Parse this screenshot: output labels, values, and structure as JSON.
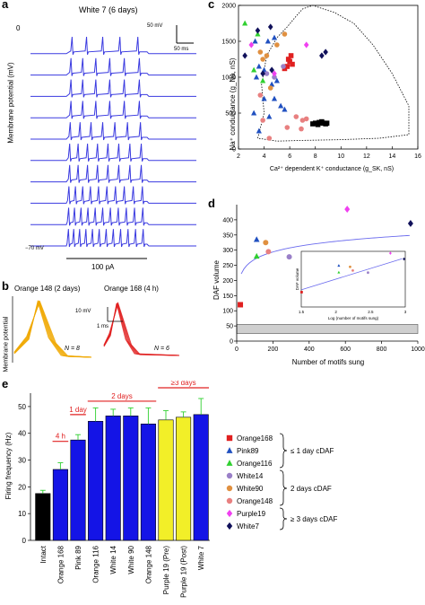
{
  "panel_labels": {
    "a": "a",
    "b": "b",
    "c": "c",
    "d": "d",
    "e": "e"
  },
  "panel_a": {
    "title": "White 7 (6 days)",
    "ylabel": "Membrane potential (mV)",
    "top_tick": "0",
    "scalebar_v": "50 mV",
    "scalebar_h": "50 ms",
    "bottom_label": "−70 mV",
    "current_label": "100 pA",
    "trace_color": "#3a3ae0",
    "spike_counts": [
      5,
      6,
      6,
      6,
      7,
      8,
      8,
      10,
      11,
      12
    ]
  },
  "panel_b": {
    "ylabel": "Membrane potential",
    "left_title": "Orange 148 (2 days)",
    "right_title": "Orange 168 (4 h)",
    "scalebar_v": "10 mV",
    "scalebar_h": "1 ms",
    "left_n": "N = 8",
    "right_n": "N = 6",
    "left_color": "#f0a800",
    "right_color": "#e02020"
  },
  "legend": {
    "items": [
      {
        "name": "Orange168",
        "marker": "square",
        "color": "#e02020"
      },
      {
        "name": "Pink89",
        "marker": "triangle-up",
        "color": "#2050c0"
      },
      {
        "name": "Orange116",
        "marker": "triangle-up",
        "color": "#30d030"
      },
      {
        "name": "White14",
        "marker": "circle",
        "color": "#9a80c8"
      },
      {
        "name": "White90",
        "marker": "circle",
        "color": "#e09040"
      },
      {
        "name": "Orange148",
        "marker": "circle",
        "color": "#e88080"
      },
      {
        "name": "Purple19",
        "marker": "diamond",
        "color": "#f040f0"
      },
      {
        "name": "White7",
        "marker": "diamond",
        "color": "#10105a"
      }
    ],
    "groups": [
      "≤ 1 day cDAF",
      "2 days cDAF",
      "≥ 3 days cDAF"
    ]
  },
  "chart_data": [
    {
      "panel": "c",
      "type": "scatter",
      "xlabel": "Ca²⁺ dependent K⁺ conductance (g_SK, nS)",
      "ylabel": "Na⁺ conductance (g_Na, nS)",
      "xlim": [
        2,
        16
      ],
      "ylim": [
        0,
        2000
      ],
      "xticks": [
        2,
        4,
        6,
        8,
        10,
        12,
        14,
        16
      ],
      "yticks": [
        0,
        500,
        1000,
        1500,
        2000
      ],
      "series": [
        {
          "name": "Orange168",
          "marker": "square",
          "color": "#e02020",
          "points": [
            [
              5.8,
              1150
            ],
            [
              5.9,
              1250
            ],
            [
              6.1,
              1300
            ],
            [
              6.2,
              1180
            ],
            [
              5.6,
              1120
            ],
            [
              6.0,
              1220
            ]
          ]
        },
        {
          "name": "Pink89",
          "marker": "triangle-up",
          "color": "#2050c0",
          "points": [
            [
              3.3,
              1500
            ],
            [
              4.3,
              1500
            ],
            [
              4.8,
              1550
            ],
            [
              3.4,
              1000
            ],
            [
              3.6,
              1150
            ],
            [
              4.0,
              1100
            ],
            [
              4.6,
              900
            ],
            [
              5.0,
              950
            ],
            [
              3.2,
              500
            ],
            [
              4.0,
              700
            ],
            [
              4.8,
              700
            ],
            [
              5.3,
              600
            ],
            [
              5.6,
              550
            ],
            [
              3.6,
              250
            ],
            [
              4.4,
              450
            ]
          ]
        },
        {
          "name": "Orange116",
          "marker": "triangle-up",
          "color": "#30d030",
          "points": [
            [
              2.5,
              1750
            ],
            [
              3.5,
              1600
            ],
            [
              3.2,
              1100
            ],
            [
              3.9,
              950
            ]
          ]
        },
        {
          "name": "White14",
          "marker": "circle",
          "color": "#9a80c8",
          "points": [
            [
              4.2,
              1050
            ],
            [
              5.5,
              1150
            ],
            [
              4.8,
              1000
            ]
          ]
        },
        {
          "name": "White90",
          "marker": "circle",
          "color": "#e09040",
          "points": [
            [
              3.7,
              1350
            ],
            [
              3.9,
              1250
            ],
            [
              4.5,
              850
            ],
            [
              5.0,
              1450
            ],
            [
              5.6,
              1600
            ],
            [
              4.2,
              1300
            ]
          ]
        },
        {
          "name": "Orange148",
          "marker": "circle",
          "color": "#e88080",
          "points": [
            [
              3.7,
              750
            ],
            [
              3.9,
              400
            ],
            [
              4.4,
              150
            ],
            [
              5.8,
              300
            ],
            [
              6.5,
              450
            ],
            [
              7.0,
              400
            ],
            [
              6.9,
              280
            ],
            [
              7.3,
              420
            ]
          ]
        },
        {
          "name": "Purple19",
          "marker": "diamond",
          "color": "#f040f0",
          "points": [
            [
              3.0,
              1450
            ],
            [
              4.8,
              1050
            ],
            [
              7.3,
              1450
            ]
          ]
        },
        {
          "name": "White7",
          "marker": "diamond",
          "color": "#10105a",
          "points": [
            [
              2.5,
              1300
            ],
            [
              3.5,
              1650
            ],
            [
              4.5,
              1700
            ],
            [
              8.8,
              1350
            ],
            [
              8.5,
              1300
            ],
            [
              3.9,
              1050
            ],
            [
              4.6,
              1100
            ]
          ]
        },
        {
          "name": "White7 cluster",
          "marker": "square",
          "color": "#000000",
          "points": [
            [
              7.8,
              350
            ],
            [
              8.0,
              360
            ],
            [
              8.2,
              340
            ],
            [
              8.3,
              370
            ],
            [
              8.5,
              380
            ],
            [
              8.6,
              360
            ],
            [
              8.8,
              350
            ],
            [
              8.9,
              360
            ]
          ]
        }
      ]
    },
    {
      "panel": "d",
      "type": "scatter",
      "xlabel": "Number of motifs sung",
      "ylabel": "DAF volume",
      "xlim": [
        0,
        1000
      ],
      "ylim": [
        0,
        450
      ],
      "xticks": [
        0,
        200,
        400,
        600,
        800,
        1000
      ],
      "yticks": [
        0,
        50,
        100,
        150,
        200,
        250,
        300,
        350,
        400
      ],
      "points": [
        {
          "series": "Orange168",
          "x": 20,
          "y": 120
        },
        {
          "series": "Pink89",
          "x": 110,
          "y": 335
        },
        {
          "series": "Orange116",
          "x": 110,
          "y": 280
        },
        {
          "series": "White14",
          "x": 290,
          "y": 278
        },
        {
          "series": "White90",
          "x": 160,
          "y": 325
        },
        {
          "series": "Orange148",
          "x": 175,
          "y": 295
        },
        {
          "series": "Purple19",
          "x": 610,
          "y": 435
        },
        {
          "series": "White7",
          "x": 960,
          "y": 388
        }
      ],
      "band_y": [
        25,
        55
      ],
      "inset": {
        "xlabel": "Log (number of motifs sung)",
        "ylabel": "DAF volume",
        "xlim": [
          1.5,
          3
        ],
        "xticks": [
          "1.5",
          "2",
          "2.5",
          "3"
        ]
      }
    },
    {
      "panel": "e",
      "type": "bar",
      "ylabel": "Firing frequency (Hz)",
      "ylim": [
        0,
        55
      ],
      "yticks": [
        0,
        10,
        20,
        30,
        40,
        50
      ],
      "categories": [
        "Intact",
        "Orange 168",
        "Pink 89",
        "Orange 116",
        "White 14",
        "White 90",
        "Orange 148",
        "Purple 19 (Pre)",
        "Purple 19 (Post)",
        "White 7"
      ],
      "values": [
        17.5,
        26.5,
        37.5,
        44.5,
        46.5,
        46.5,
        43.5,
        45.0,
        46.0,
        47.0
      ],
      "errors": [
        1.2,
        2.5,
        2.0,
        5.0,
        2.5,
        3.0,
        6.0,
        3.5,
        2.0,
        6.0
      ],
      "colors": [
        "#000000",
        "#1414e6",
        "#1414e6",
        "#1414e6",
        "#1414e6",
        "#1414e6",
        "#1414e6",
        "#f2ef28",
        "#f2ef28",
        "#1414e6"
      ],
      "group_labels": [
        "4 h",
        "1 day",
        "2 days",
        "≥3 days"
      ]
    }
  ]
}
